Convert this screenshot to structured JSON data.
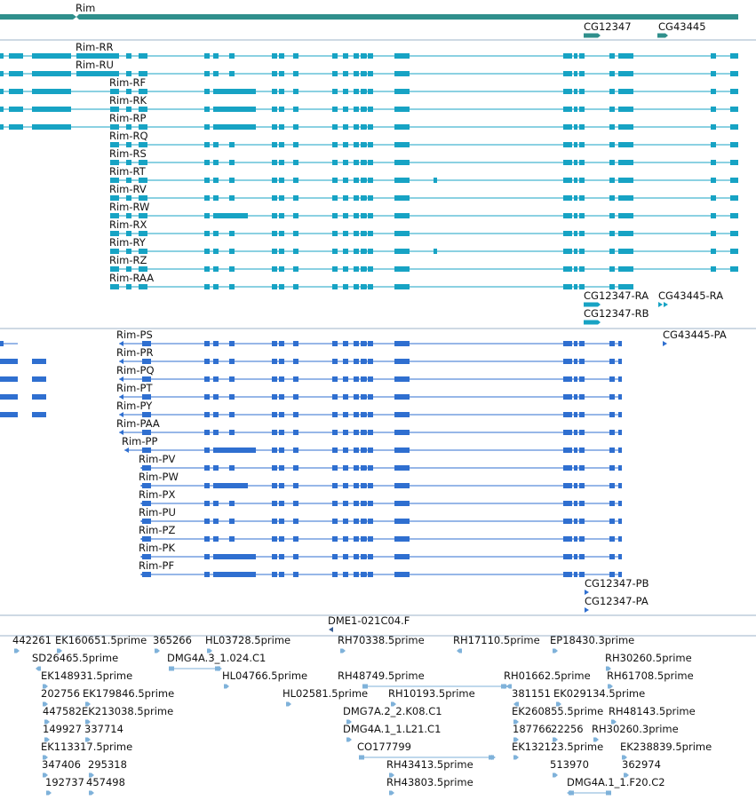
{
  "colors": {
    "gene": "#2f8f8c",
    "mrna": "#17a3c4",
    "protein": "#2f6fd0",
    "est": "#7fb2da",
    "divider": "#9db3c8"
  },
  "gene_section": {
    "genes": [
      "Rim",
      "CG12347",
      "CG43445"
    ]
  },
  "mrna_section": {
    "transcripts": [
      "Rim-RR",
      "Rim-RU",
      "Rim-RF",
      "Rim-RK",
      "Rim-RP",
      "Rim-RQ",
      "Rim-RS",
      "Rim-RT",
      "Rim-RV",
      "Rim-RW",
      "Rim-RX",
      "Rim-RY",
      "Rim-RZ",
      "Rim-RAA"
    ],
    "side_labels": [
      "CG12347-RA",
      "CG43445-RA",
      "CG12347-RB"
    ]
  },
  "protein_section": {
    "proteins": [
      "Rim-PS",
      "Rim-PR",
      "Rim-PQ",
      "Rim-PT",
      "Rim-PY",
      "Rim-PAA",
      "Rim-PP",
      "Rim-PV",
      "Rim-PW",
      "Rim-PX",
      "Rim-PU",
      "Rim-PZ",
      "Rim-PK",
      "Rim-PF"
    ],
    "side_labels": [
      "CG43445-PA",
      "CG12347-PB",
      "CG12347-PA"
    ]
  },
  "clone_section": {
    "label": "DME1-021C04.F"
  },
  "est_section": {
    "labels": [
      "442261",
      "EK160651.5prime",
      "365266",
      "HL03728.5prime",
      "RH70338.5prime",
      "RH17110.5prime",
      "EP18430.3prime",
      "SD26465.5prime",
      "DMG4A.3_1.024.C1",
      "RH30260.5prime",
      "EK148931.5prime",
      "HL04766.5prime",
      "RH48749.5prime",
      "RH01662.5prime",
      "RH61708.5prime",
      "202756",
      "EK179846.5prime",
      "HL02581.5prime",
      "RH10193.5prime",
      "381151",
      "EK029134.5prime",
      "447582",
      "EK213038.5prime",
      "DMG7A.2_2.K08.C1",
      "EK260855.5prime",
      "RH48143.5prime",
      "149927",
      "337714",
      "DMG4A.1_1.L21.C1",
      "187766",
      "22256",
      "RH30260.3prime",
      "EK113317.5prime",
      "CO177799",
      "EK132123.5prime",
      "EK238839.5prime",
      "347406",
      "295318",
      "RH43413.5prime",
      "513970",
      "362974",
      "192737",
      "457498",
      "RH43803.5prime",
      "DMG4A.1_1.F20.C2"
    ]
  }
}
